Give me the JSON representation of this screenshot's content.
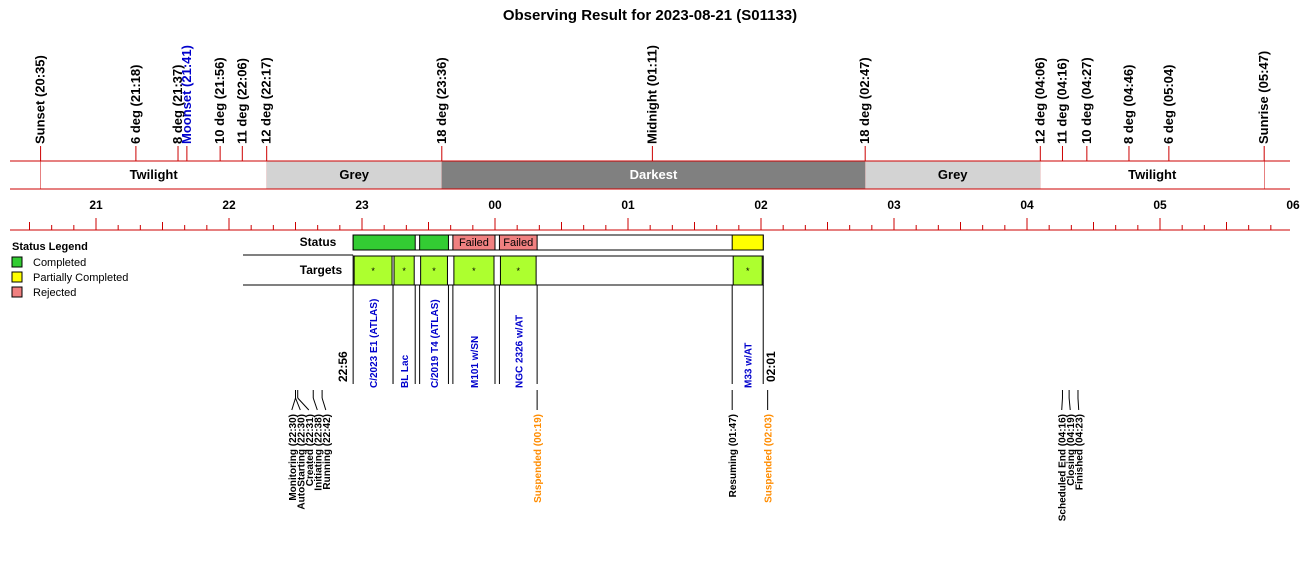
{
  "title": "Observing Result for 2023-08-21 (S01133)",
  "colors": {
    "axis": "#cc0000",
    "twilight": "#ffffff",
    "grey": "#d3d3d3",
    "darkest": "#808080",
    "completed": "#33cc33",
    "partial": "#ffff00",
    "rejected": "#f08080",
    "target_fill": "#adff2f",
    "target_text": "#0000cc",
    "suspended_text": "#ff8c00",
    "moonset_text": "#0000cc"
  },
  "sun_events": [
    {
      "label": "Sunset (20:35)",
      "t": "20:35"
    },
    {
      "label": "6 deg (21:18)",
      "t": "21:18"
    },
    {
      "label": "8 deg (21:37)",
      "t": "21:37"
    },
    {
      "label": "Moonset (21:41)",
      "t": "21:41",
      "moon": true
    },
    {
      "label": "10 deg (21:56)",
      "t": "21:56"
    },
    {
      "label": "11 deg (22:06)",
      "t": "22:06"
    },
    {
      "label": "12 deg (22:17)",
      "t": "22:17"
    },
    {
      "label": "18 deg (23:36)",
      "t": "23:36"
    },
    {
      "label": "Midnight (01:11)",
      "t": "01:11"
    },
    {
      "label": "18 deg (02:47)",
      "t": "02:47"
    },
    {
      "label": "12 deg (04:06)",
      "t": "04:06"
    },
    {
      "label": "11 deg (04:16)",
      "t": "04:16"
    },
    {
      "label": "10 deg (04:27)",
      "t": "04:27"
    },
    {
      "label": "8 deg (04:46)",
      "t": "04:46"
    },
    {
      "label": "6 deg (05:04)",
      "t": "05:04"
    },
    {
      "label": "Sunrise (05:47)",
      "t": "05:47"
    }
  ],
  "bands": [
    {
      "label": "Twilight",
      "start": "20:35",
      "end": "22:17",
      "kind": "twilight"
    },
    {
      "label": "Grey",
      "start": "22:17",
      "end": "23:36",
      "kind": "grey"
    },
    {
      "label": "Darkest",
      "start": "23:36",
      "end": "02:47",
      "kind": "darkest"
    },
    {
      "label": "Grey",
      "start": "02:47",
      "end": "04:06",
      "kind": "grey"
    },
    {
      "label": "Twilight",
      "start": "04:06",
      "end": "05:47",
      "kind": "twilight"
    }
  ],
  "hour_ticks": [
    "21",
    "22",
    "23",
    "00",
    "01",
    "02",
    "03",
    "04",
    "05",
    "06"
  ],
  "legend": {
    "title": "Status Legend",
    "items": [
      {
        "label": "Completed",
        "status": "completed"
      },
      {
        "label": "Partially Completed",
        "status": "partial"
      },
      {
        "label": "Rejected",
        "status": "rejected"
      }
    ]
  },
  "rows": {
    "status_label": "Status",
    "targets_label": "Targets"
  },
  "schedule": {
    "start": "22:56",
    "end": "02:01"
  },
  "status_segments": [
    {
      "start": "22:56",
      "end": "23:24",
      "status": "completed",
      "text": ""
    },
    {
      "start": "23:26",
      "end": "23:39",
      "status": "completed",
      "text": ""
    },
    {
      "start": "23:41",
      "end": "00:00",
      "status": "rejected",
      "text": "Failed"
    },
    {
      "start": "00:02",
      "end": "00:19",
      "status": "rejected",
      "text": "Failed"
    },
    {
      "start": "01:47",
      "end": "02:01",
      "status": "partial",
      "text": ""
    }
  ],
  "targets": [
    {
      "name": "C/2023 E1 (ATLAS)",
      "start": "22:56",
      "end": "23:14",
      "mark": "*"
    },
    {
      "name": "BL Lac",
      "start": "23:14",
      "end": "23:24",
      "mark": "*"
    },
    {
      "name": "C/2019 T4 (ATLAS)",
      "start": "23:26",
      "end": "23:39",
      "mark": "*"
    },
    {
      "name": "M101 w/SN",
      "start": "23:41",
      "end": "00:00",
      "mark": "*"
    },
    {
      "name": "NGC 2326 w/AT",
      "start": "00:02",
      "end": "00:19",
      "mark": "*"
    },
    {
      "name": "M33 w/AT",
      "start": "01:47",
      "end": "02:01",
      "mark": "*"
    }
  ],
  "time_labels": [
    {
      "label": "22:56",
      "t": "22:56"
    },
    {
      "label": "02:01",
      "t": "02:01"
    }
  ],
  "log_events": [
    {
      "label": "Monitoring (22:30)",
      "t": "22:30",
      "kind": "normal"
    },
    {
      "label": "AutoStarting (22:30)",
      "t": "22:30",
      "kind": "normal"
    },
    {
      "label": "Created (22:31)",
      "t": "22:31",
      "kind": "normal"
    },
    {
      "label": "Initiating (22:38)",
      "t": "22:38",
      "kind": "normal"
    },
    {
      "label": "Running (22:42)",
      "t": "22:42",
      "kind": "normal"
    },
    {
      "label": "Suspended (00:19)",
      "t": "00:19",
      "kind": "suspended"
    },
    {
      "label": "Resuming (01:47)",
      "t": "01:47",
      "kind": "normal"
    },
    {
      "label": "Suspended (02:03)",
      "t": "02:03",
      "kind": "suspended"
    },
    {
      "label": "Scheduled End (04:16)",
      "t": "04:16",
      "kind": "normal"
    },
    {
      "label": "Closing (04:19)",
      "t": "04:19",
      "kind": "normal"
    },
    {
      "label": "Finished (04:23)",
      "t": "04:23",
      "kind": "normal"
    }
  ]
}
